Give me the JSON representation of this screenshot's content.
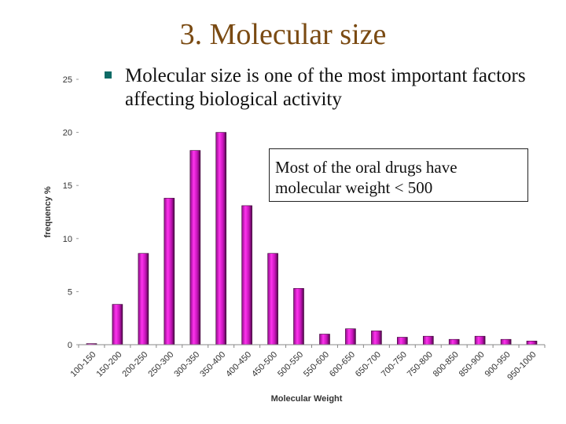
{
  "slide": {
    "title": "3. Molecular size",
    "bullet": "Molecular size is one of the most important factors affecting biological activity",
    "callout": "Most of the oral drugs have molecular weight < 500"
  },
  "chart_data": {
    "type": "bar",
    "categories": [
      "100-150",
      "150-200",
      "200-250",
      "250-300",
      "300-350",
      "350-400",
      "400-450",
      "450-500",
      "500-550",
      "550-600",
      "600-650",
      "650-700",
      "700-750",
      "750-800",
      "800-850",
      "850-900",
      "900-950",
      "950-1000"
    ],
    "values": [
      0.1,
      3.8,
      8.6,
      13.8,
      18.3,
      20.0,
      13.1,
      8.6,
      5.3,
      1.0,
      1.5,
      1.3,
      0.7,
      0.8,
      0.5,
      0.8,
      0.5,
      0.35
    ],
    "title": "",
    "xlabel": "Molecular Weight",
    "ylabel": "frequency %",
    "ylim": [
      0,
      25
    ],
    "yticks": [
      0,
      5,
      10,
      15,
      20,
      25
    ],
    "colors": {
      "bar_top": "#ff22ee",
      "bar_mid": "#c012b8",
      "bar_dark": "#5a0858",
      "bullet": "#0e6b66",
      "title": "#7a4a12"
    }
  }
}
